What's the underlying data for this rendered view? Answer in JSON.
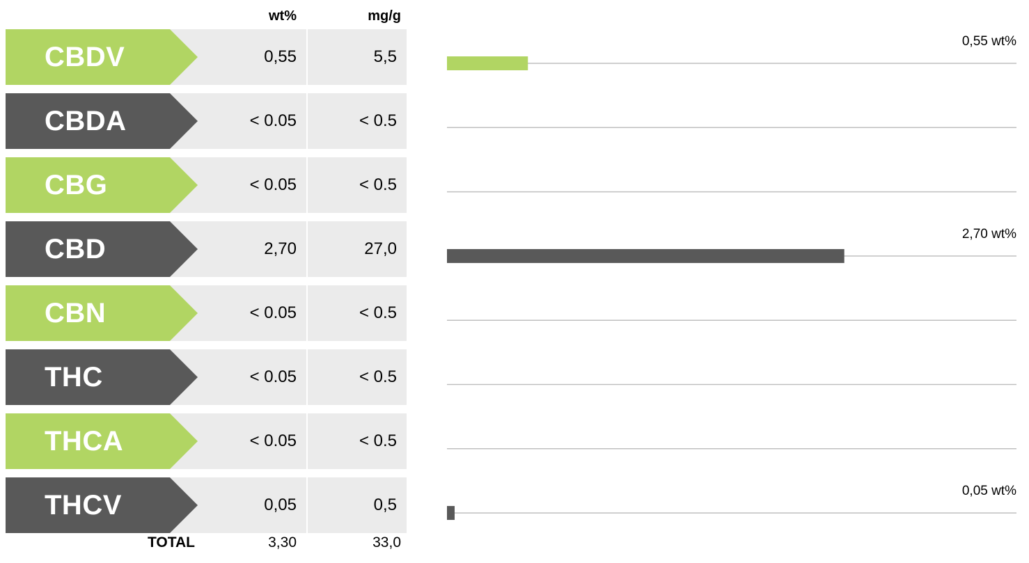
{
  "headers": {
    "wt": "wt%",
    "mg": "mg/g"
  },
  "colors": {
    "green": "#b1d563",
    "grey": "#595959",
    "row_bg": "#ebebeb",
    "track": "#bfbfbf"
  },
  "rows": [
    {
      "name": "CBDV",
      "wt": "0,55",
      "mg": "5,5",
      "color": "green"
    },
    {
      "name": "CBDA",
      "wt": "< 0.05",
      "mg": "< 0.5",
      "color": "grey"
    },
    {
      "name": "CBG",
      "wt": "< 0.05",
      "mg": "< 0.5",
      "color": "green"
    },
    {
      "name": "CBD",
      "wt": "2,70",
      "mg": "27,0",
      "color": "grey"
    },
    {
      "name": "CBN",
      "wt": "< 0.05",
      "mg": "< 0.5",
      "color": "green"
    },
    {
      "name": "THC",
      "wt": "< 0.05",
      "mg": "< 0.5",
      "color": "grey"
    },
    {
      "name": "THCA",
      "wt": "< 0.05",
      "mg": "< 0.5",
      "color": "green"
    },
    {
      "name": "THCV",
      "wt": "0,05",
      "mg": "0,5",
      "color": "grey"
    }
  ],
  "total": {
    "label": "TOTAL",
    "wt": "3,30",
    "mg": "33,0"
  },
  "chart_data": {
    "type": "bar",
    "orientation": "horizontal",
    "categories": [
      "CBDV",
      "CBDA",
      "CBG",
      "CBD",
      "CBN",
      "THC",
      "THCA",
      "THCV"
    ],
    "values": [
      0.55,
      null,
      null,
      2.7,
      null,
      null,
      null,
      0.05
    ],
    "value_labels": [
      "0,55 wt%",
      "",
      "",
      "2,70 wt%",
      "",
      "",
      "",
      "0,05 wt%"
    ],
    "unit": "wt%",
    "xlim": [
      0,
      3.87
    ]
  }
}
